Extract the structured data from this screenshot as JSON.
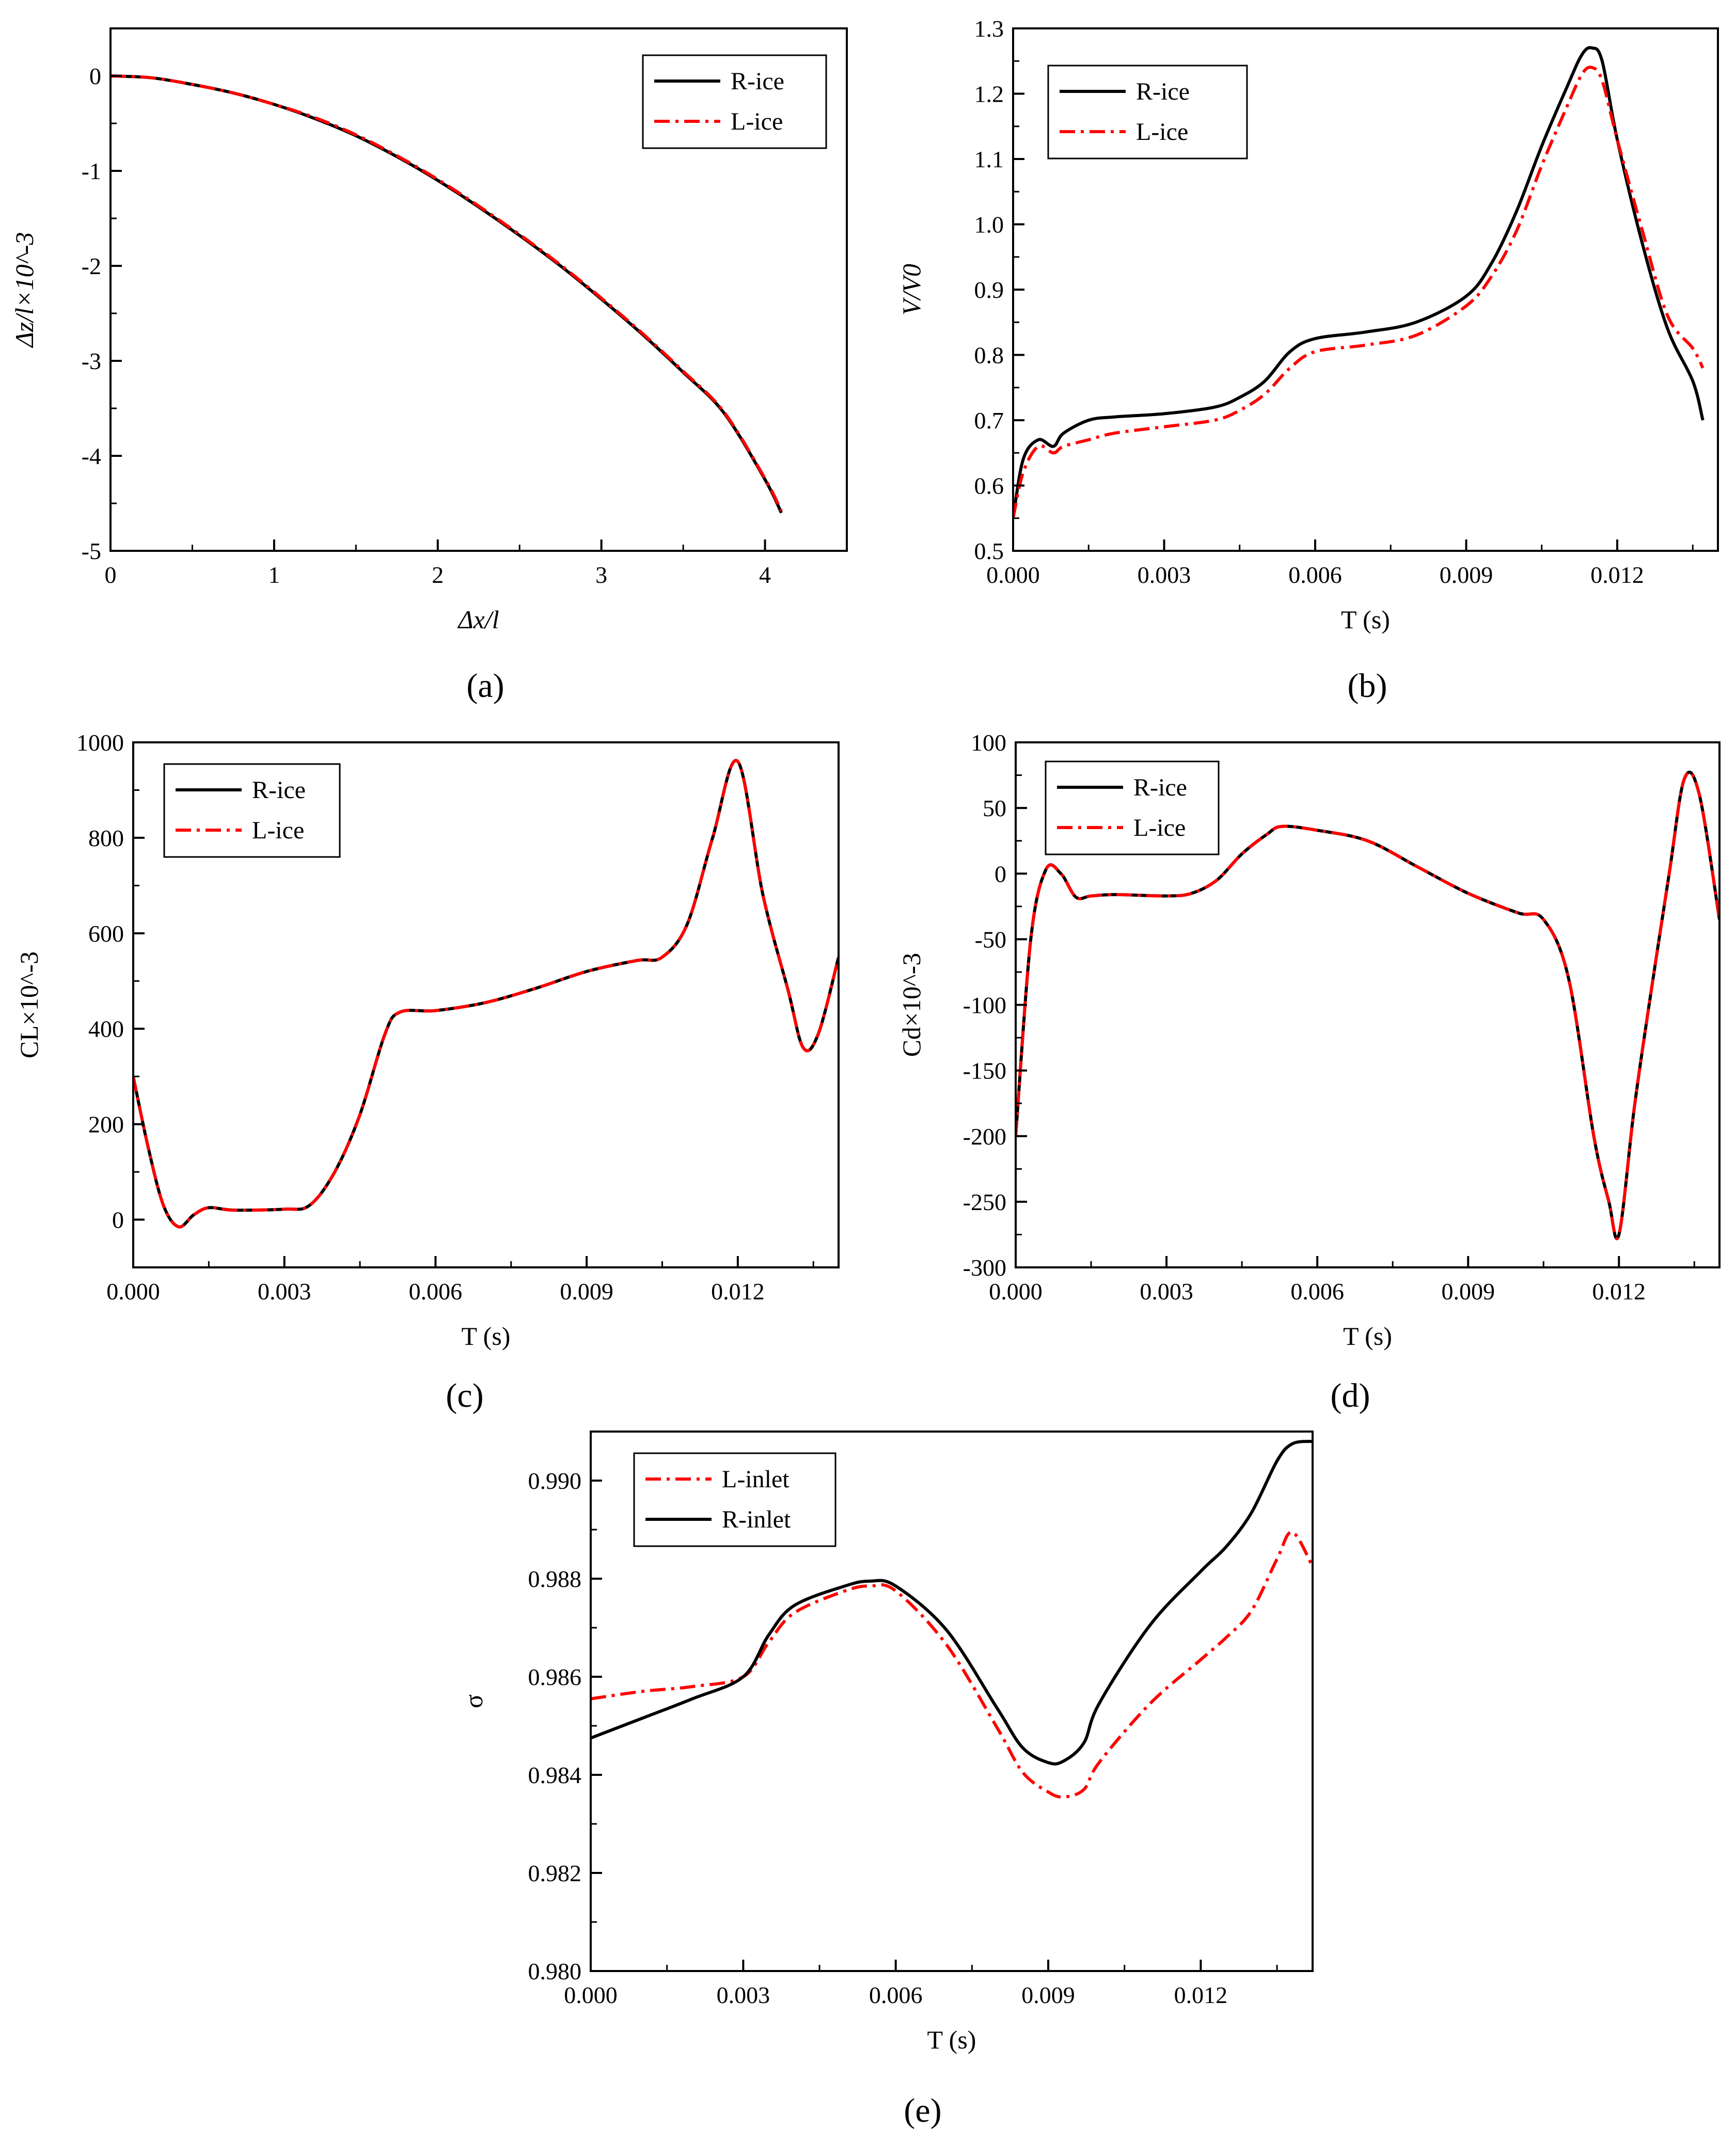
{
  "figure": {
    "panel_labels": [
      "(a)",
      "(b)",
      "(c)",
      "(d)",
      "(e)"
    ]
  },
  "colors": {
    "r_series": "#000000",
    "l_series": "#ff0000"
  },
  "chart_data": [
    {
      "type": "line",
      "id": "a",
      "title": "",
      "xlabel": "Δx/l",
      "ylabel": "Δz/l×10^-3",
      "xlim": [
        0,
        4.5
      ],
      "ylim": [
        -5,
        0.5
      ],
      "xticks": [
        0,
        1,
        2,
        3,
        4
      ],
      "yticks": [
        -5,
        -4,
        -3,
        -2,
        -1,
        0
      ],
      "xtick_labels": [
        "0",
        "1",
        "2",
        "3",
        "4"
      ],
      "ytick_labels": [
        "-5",
        "-4",
        "-3",
        "-2",
        "-1",
        "0"
      ],
      "legend": {
        "position": "top-right",
        "entries": [
          "R-ice",
          "L-ice"
        ]
      },
      "series": [
        {
          "name": "R-ice",
          "style": "solid",
          "x": [
            0,
            0.25,
            0.5,
            0.75,
            1.0,
            1.25,
            1.5,
            1.75,
            2.0,
            2.25,
            2.5,
            2.75,
            3.0,
            3.25,
            3.5,
            3.75,
            4.0,
            4.1
          ],
          "y": [
            0,
            -0.02,
            -0.09,
            -0.18,
            -0.3,
            -0.45,
            -0.63,
            -0.85,
            -1.1,
            -1.38,
            -1.68,
            -2.0,
            -2.35,
            -2.72,
            -3.12,
            -3.55,
            -4.25,
            -4.6
          ]
        },
        {
          "name": "L-ice",
          "style": "dashdot",
          "x": [
            0,
            0.25,
            0.5,
            0.75,
            1.0,
            1.25,
            1.5,
            1.75,
            2.0,
            2.25,
            2.5,
            2.75,
            3.0,
            3.25,
            3.5,
            3.75,
            4.0,
            4.1
          ],
          "y": [
            0,
            -0.02,
            -0.09,
            -0.18,
            -0.3,
            -0.44,
            -0.62,
            -0.84,
            -1.09,
            -1.37,
            -1.67,
            -1.99,
            -2.34,
            -2.71,
            -3.11,
            -3.54,
            -4.24,
            -4.58
          ]
        }
      ]
    },
    {
      "type": "line",
      "id": "b",
      "title": "",
      "xlabel": "T (s)",
      "ylabel": "V/V0",
      "xlim": [
        0,
        0.014
      ],
      "ylim": [
        0.5,
        1.3
      ],
      "xticks": [
        0,
        0.003,
        0.006,
        0.009,
        0.012
      ],
      "yticks": [
        0.5,
        0.6,
        0.7,
        0.8,
        0.9,
        1.0,
        1.1,
        1.2,
        1.3
      ],
      "xtick_labels": [
        "0.000",
        "0.003",
        "0.006",
        "0.009",
        "0.012"
      ],
      "ytick_labels": [
        "0.5",
        "0.6",
        "0.7",
        "0.8",
        "0.9",
        "1.0",
        "1.1",
        "1.2",
        "1.3"
      ],
      "legend": {
        "position": "top-left",
        "entries": [
          "R-ice",
          "L-ice"
        ]
      },
      "series": [
        {
          "name": "R-ice",
          "style": "solid",
          "x": [
            0,
            0.0002,
            0.0005,
            0.0008,
            0.001,
            0.0015,
            0.002,
            0.003,
            0.004,
            0.0045,
            0.005,
            0.0055,
            0.006,
            0.007,
            0.008,
            0.009,
            0.0095,
            0.01,
            0.0105,
            0.011,
            0.0113,
            0.0115,
            0.0117,
            0.012,
            0.0125,
            0.013,
            0.0135,
            0.0137
          ],
          "y": [
            0.55,
            0.64,
            0.67,
            0.66,
            0.68,
            0.7,
            0.705,
            0.71,
            0.72,
            0.735,
            0.76,
            0.805,
            0.825,
            0.835,
            0.85,
            0.89,
            0.94,
            1.02,
            1.12,
            1.21,
            1.26,
            1.27,
            1.25,
            1.13,
            0.97,
            0.84,
            0.76,
            0.7
          ]
        },
        {
          "name": "L-ice",
          "style": "dashdot",
          "x": [
            0,
            0.0002,
            0.0005,
            0.0008,
            0.001,
            0.0015,
            0.002,
            0.003,
            0.004,
            0.0045,
            0.005,
            0.0055,
            0.006,
            0.007,
            0.008,
            0.009,
            0.0095,
            0.01,
            0.0105,
            0.011,
            0.0113,
            0.0115,
            0.0117,
            0.012,
            0.0125,
            0.013,
            0.0135,
            0.0137
          ],
          "y": [
            0.55,
            0.62,
            0.66,
            0.65,
            0.66,
            0.67,
            0.68,
            0.69,
            0.7,
            0.715,
            0.74,
            0.78,
            0.805,
            0.815,
            0.83,
            0.875,
            0.92,
            0.99,
            1.09,
            1.18,
            1.23,
            1.24,
            1.22,
            1.13,
            0.99,
            0.86,
            0.81,
            0.78
          ]
        }
      ]
    },
    {
      "type": "line",
      "id": "c",
      "title": "",
      "xlabel": "T (s)",
      "ylabel": "CL×10^-3",
      "xlim": [
        0,
        0.014
      ],
      "ylim": [
        -100,
        1000
      ],
      "xticks": [
        0,
        0.003,
        0.006,
        0.009,
        0.012
      ],
      "yticks": [
        0,
        200,
        400,
        600,
        800,
        1000
      ],
      "xtick_labels": [
        "0.000",
        "0.003",
        "0.006",
        "0.009",
        "0.012"
      ],
      "ytick_labels": [
        "0",
        "200",
        "400",
        "600",
        "800",
        "1000"
      ],
      "legend": {
        "position": "top-left",
        "entries": [
          "R-ice",
          "L-ice"
        ]
      },
      "series": [
        {
          "name": "R-ice",
          "style": "solid",
          "x": [
            0,
            0.0003,
            0.0006,
            0.0009,
            0.0012,
            0.0015,
            0.002,
            0.003,
            0.0035,
            0.004,
            0.0045,
            0.005,
            0.0053,
            0.006,
            0.007,
            0.008,
            0.009,
            0.01,
            0.0105,
            0.011,
            0.0115,
            0.012,
            0.0125,
            0.013,
            0.0133,
            0.0136,
            0.014
          ],
          "y": [
            300,
            150,
            30,
            -15,
            10,
            25,
            20,
            22,
            30,
            100,
            220,
            390,
            435,
            438,
            455,
            485,
            520,
            543,
            550,
            620,
            800,
            960,
            680,
            480,
            360,
            390,
            550
          ]
        },
        {
          "name": "L-ice",
          "style": "dashdot",
          "x": [
            0,
            0.0003,
            0.0006,
            0.0009,
            0.0012,
            0.0015,
            0.002,
            0.003,
            0.0035,
            0.004,
            0.0045,
            0.005,
            0.0053,
            0.006,
            0.007,
            0.008,
            0.009,
            0.01,
            0.0105,
            0.011,
            0.0115,
            0.012,
            0.0125,
            0.013,
            0.0133,
            0.0136,
            0.014
          ],
          "y": [
            300,
            150,
            30,
            -15,
            10,
            25,
            20,
            22,
            30,
            100,
            220,
            390,
            435,
            438,
            455,
            485,
            520,
            543,
            550,
            620,
            800,
            960,
            680,
            480,
            360,
            390,
            550
          ]
        }
      ]
    },
    {
      "type": "line",
      "id": "d",
      "title": "",
      "xlabel": "T (s)",
      "ylabel": "Cd×10^-3",
      "xlim": [
        0,
        0.014
      ],
      "ylim": [
        -300,
        100
      ],
      "xticks": [
        0,
        0.003,
        0.006,
        0.009,
        0.012
      ],
      "yticks": [
        -300,
        -250,
        -200,
        -150,
        -100,
        -50,
        0,
        50,
        100
      ],
      "xtick_labels": [
        "0.000",
        "0.003",
        "0.006",
        "0.009",
        "0.012"
      ],
      "ytick_labels": [
        "-300",
        "-250",
        "-200",
        "-150",
        "-100",
        "-50",
        "0",
        "50",
        "100"
      ],
      "legend": {
        "position": "top-left",
        "entries": [
          "R-ice",
          "L-ice"
        ]
      },
      "series": [
        {
          "name": "R-ice",
          "style": "solid",
          "x": [
            0,
            0.0003,
            0.0006,
            0.0009,
            0.0012,
            0.0015,
            0.002,
            0.003,
            0.0035,
            0.004,
            0.0045,
            0.005,
            0.0053,
            0.006,
            0.007,
            0.008,
            0.009,
            0.01,
            0.0105,
            0.011,
            0.0115,
            0.0118,
            0.012,
            0.0123,
            0.0126,
            0.013,
            0.0133,
            0.0136,
            0.014
          ],
          "y": [
            -200,
            -50,
            3,
            0,
            -18,
            -17,
            -16,
            -17,
            -15,
            -5,
            15,
            30,
            36,
            33,
            25,
            5,
            -15,
            -30,
            -35,
            -80,
            -200,
            -250,
            -275,
            -180,
            -100,
            0,
            72,
            60,
            -35
          ]
        },
        {
          "name": "L-ice",
          "style": "dashdot",
          "x": [
            0,
            0.0003,
            0.0006,
            0.0009,
            0.0012,
            0.0015,
            0.002,
            0.003,
            0.0035,
            0.004,
            0.0045,
            0.005,
            0.0053,
            0.006,
            0.007,
            0.008,
            0.009,
            0.01,
            0.0105,
            0.011,
            0.0115,
            0.0118,
            0.012,
            0.0123,
            0.0126,
            0.013,
            0.0133,
            0.0136,
            0.014
          ],
          "y": [
            -200,
            -50,
            3,
            0,
            -18,
            -17,
            -16,
            -17,
            -15,
            -5,
            15,
            30,
            36,
            33,
            25,
            5,
            -15,
            -30,
            -35,
            -80,
            -200,
            -250,
            -275,
            -180,
            -100,
            0,
            72,
            60,
            -35
          ]
        }
      ]
    },
    {
      "type": "line",
      "id": "e",
      "title": "",
      "xlabel": "T (s)",
      "ylabel": "σ",
      "xlim": [
        0,
        0.0142
      ],
      "ylim": [
        0.98,
        0.991
      ],
      "xticks": [
        0,
        0.003,
        0.006,
        0.009,
        0.012
      ],
      "yticks": [
        0.98,
        0.982,
        0.984,
        0.986,
        0.988,
        0.99
      ],
      "xtick_labels": [
        "0.000",
        "0.003",
        "0.006",
        "0.009",
        "0.012"
      ],
      "ytick_labels": [
        "0.980",
        "0.982",
        "0.984",
        "0.986",
        "0.988",
        "0.990"
      ],
      "legend": {
        "position": "top-left",
        "entries": [
          "L-inlet",
          "R-inlet"
        ]
      },
      "series": [
        {
          "name": "L-inlet",
          "style": "dashdot",
          "x": [
            0,
            0.001,
            0.002,
            0.003,
            0.0035,
            0.004,
            0.005,
            0.0055,
            0.006,
            0.007,
            0.008,
            0.0085,
            0.009,
            0.0093,
            0.0097,
            0.01,
            0.011,
            0.012,
            0.0125,
            0.013,
            0.0135,
            0.0138,
            0.0142
          ],
          "y": [
            0.98555,
            0.9857,
            0.9858,
            0.986,
            0.9867,
            0.9873,
            0.98775,
            0.98785,
            0.98775,
            0.98665,
            0.98495,
            0.98405,
            0.98365,
            0.98355,
            0.9837,
            0.98425,
            0.98545,
            0.98635,
            0.9868,
            0.98735,
            0.9884,
            0.98895,
            0.98825
          ]
        },
        {
          "name": "R-inlet",
          "style": "solid",
          "x": [
            0,
            0.001,
            0.002,
            0.003,
            0.0035,
            0.004,
            0.005,
            0.0055,
            0.006,
            0.007,
            0.008,
            0.0085,
            0.009,
            0.0093,
            0.0097,
            0.01,
            0.011,
            0.012,
            0.0125,
            0.013,
            0.0135,
            0.0138,
            0.0142
          ],
          "y": [
            0.98475,
            0.98515,
            0.98555,
            0.986,
            0.98685,
            0.98745,
            0.98785,
            0.98795,
            0.98785,
            0.98695,
            0.98535,
            0.98455,
            0.98425,
            0.98428,
            0.98465,
            0.98545,
            0.98705,
            0.98815,
            0.98865,
            0.98935,
            0.9904,
            0.99075,
            0.9908
          ]
        }
      ]
    }
  ]
}
